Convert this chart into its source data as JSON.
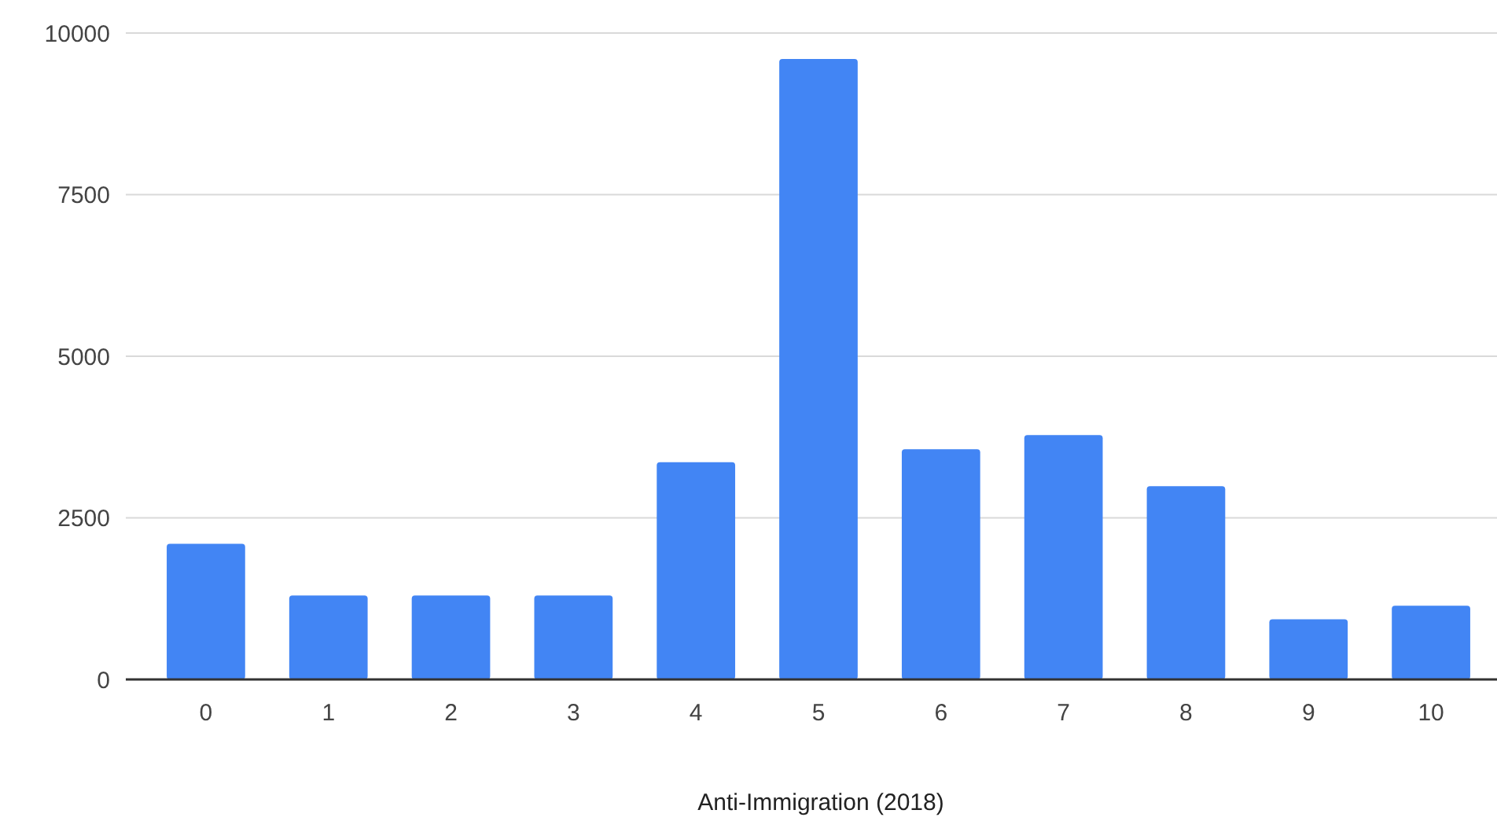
{
  "chart_data": {
    "type": "bar",
    "xlabel": "Anti-Immigration (2018)",
    "categories": [
      "0",
      "1",
      "2",
      "3",
      "4",
      "5",
      "6",
      "7",
      "8",
      "9",
      "10"
    ],
    "values": [
      2100,
      1300,
      1300,
      1300,
      3360,
      9600,
      3560,
      3780,
      2990,
      930,
      1140
    ],
    "color": "#4285f4",
    "ylim": [
      0,
      10000
    ],
    "yticks": [
      0,
      2500,
      5000,
      7500,
      10000
    ],
    "grid": "y"
  }
}
